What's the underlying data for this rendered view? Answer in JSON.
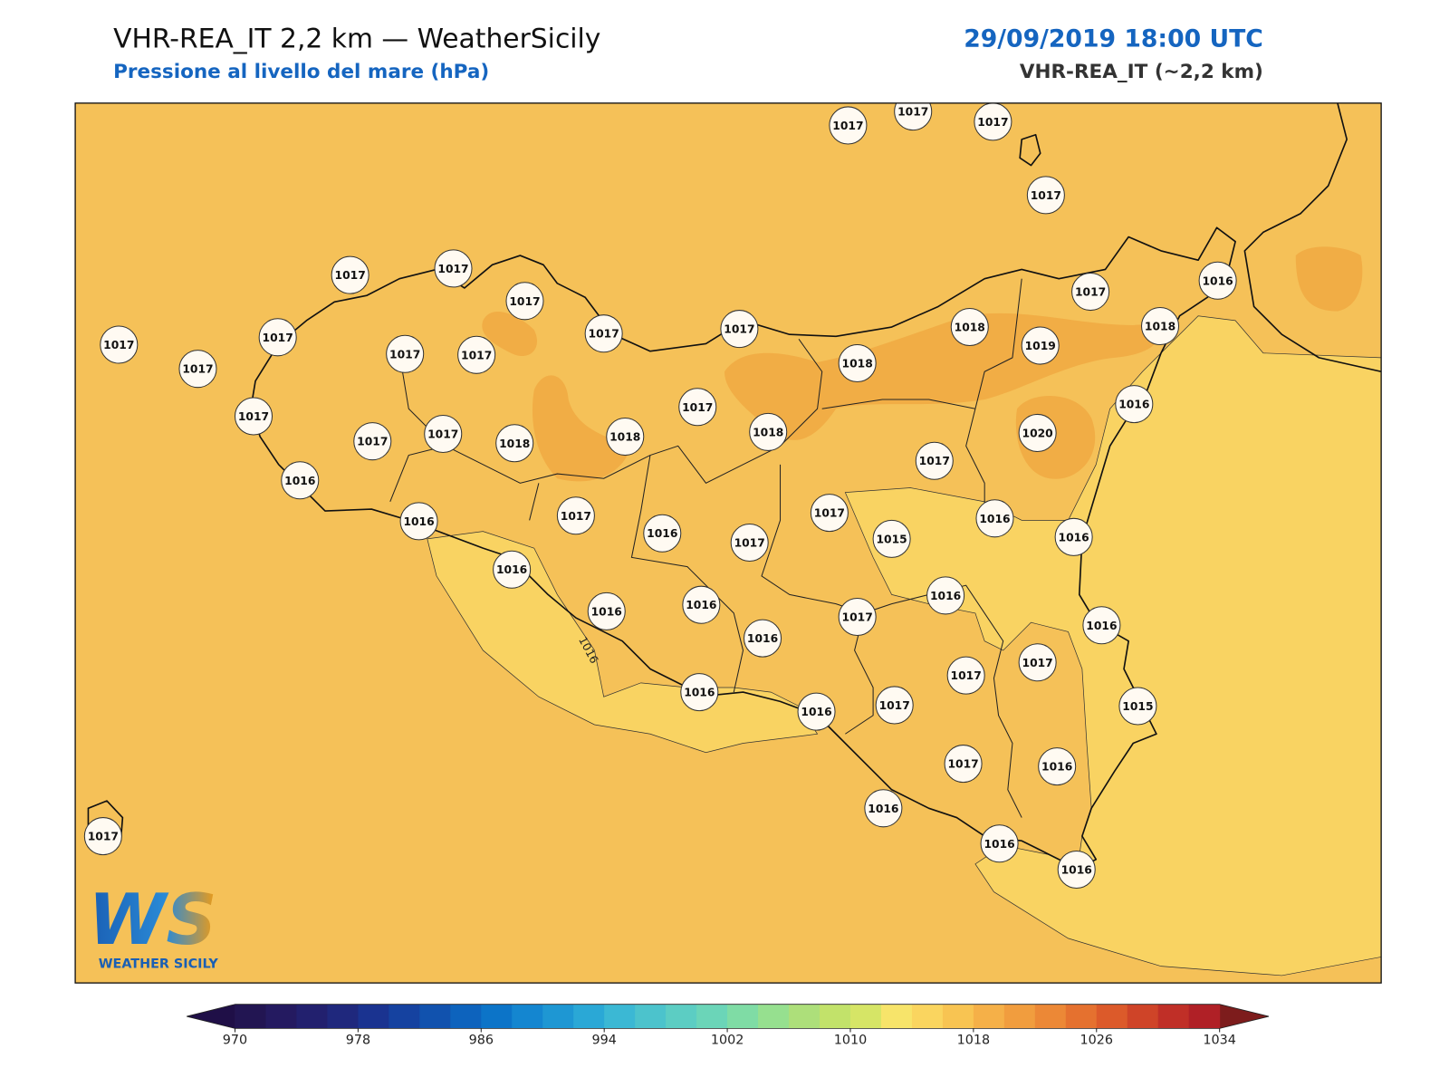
{
  "header": {
    "title": "VHR-REA_IT 2,2 km — WeatherSicily",
    "subtitle": "Pressione al livello del mare (hPa)",
    "datetime": "29/09/2019 18:00 UTC",
    "model": "VHR-REA_IT (~2,2 km)"
  },
  "map": {
    "stations": [
      1017,
      1017,
      1017,
      1017,
      1017,
      1017,
      1017,
      1017,
      1017,
      1018,
      1017,
      1016,
      1018,
      1017,
      1017,
      1017,
      1017,
      1017,
      1018,
      1019,
      1017,
      1017,
      1016,
      1017,
      1017,
      1018,
      1018,
      1018,
      1020,
      1017,
      1016,
      1016,
      1017,
      1017,
      1016,
      1016,
      1016,
      1017,
      1015,
      1016,
      1016,
      1016,
      1016,
      1017,
      1016,
      1016,
      1017,
      1017,
      1016,
      1016,
      1017,
      1015,
      1017,
      1016,
      1016,
      1016,
      1016,
      1017
    ],
    "contour_label": "1016",
    "colors": {
      "field": "#f5c158",
      "low": "#f9d362",
      "high": "#f1ad45"
    }
  },
  "colorbar": {
    "ticks": [
      970,
      978,
      986,
      994,
      1002,
      1010,
      1018,
      1026,
      1034
    ],
    "colors": [
      "#221552",
      "#241a60",
      "#22206e",
      "#1f287d",
      "#1a3390",
      "#1542a0",
      "#1152ae",
      "#0d63bd",
      "#0c74c8",
      "#1486d0",
      "#1e97d3",
      "#2aa8d6",
      "#3bb8d4",
      "#4cc3cc",
      "#5ccdc3",
      "#6bd5b8",
      "#7fdca5",
      "#96e08f",
      "#addf7a",
      "#c2e26a",
      "#d6e566",
      "#f7e46a",
      "#fad55f",
      "#f8c452",
      "#f5b048",
      "#f19d3e",
      "#ec8836",
      "#e5712f",
      "#dc5a2a",
      "#cf4428",
      "#c02f27",
      "#b02026"
    ],
    "extend_colors": [
      "#1f0f47",
      "#7d1c1c"
    ]
  },
  "logo": {
    "mark": "WS",
    "text": "WEATHER SICILY"
  }
}
